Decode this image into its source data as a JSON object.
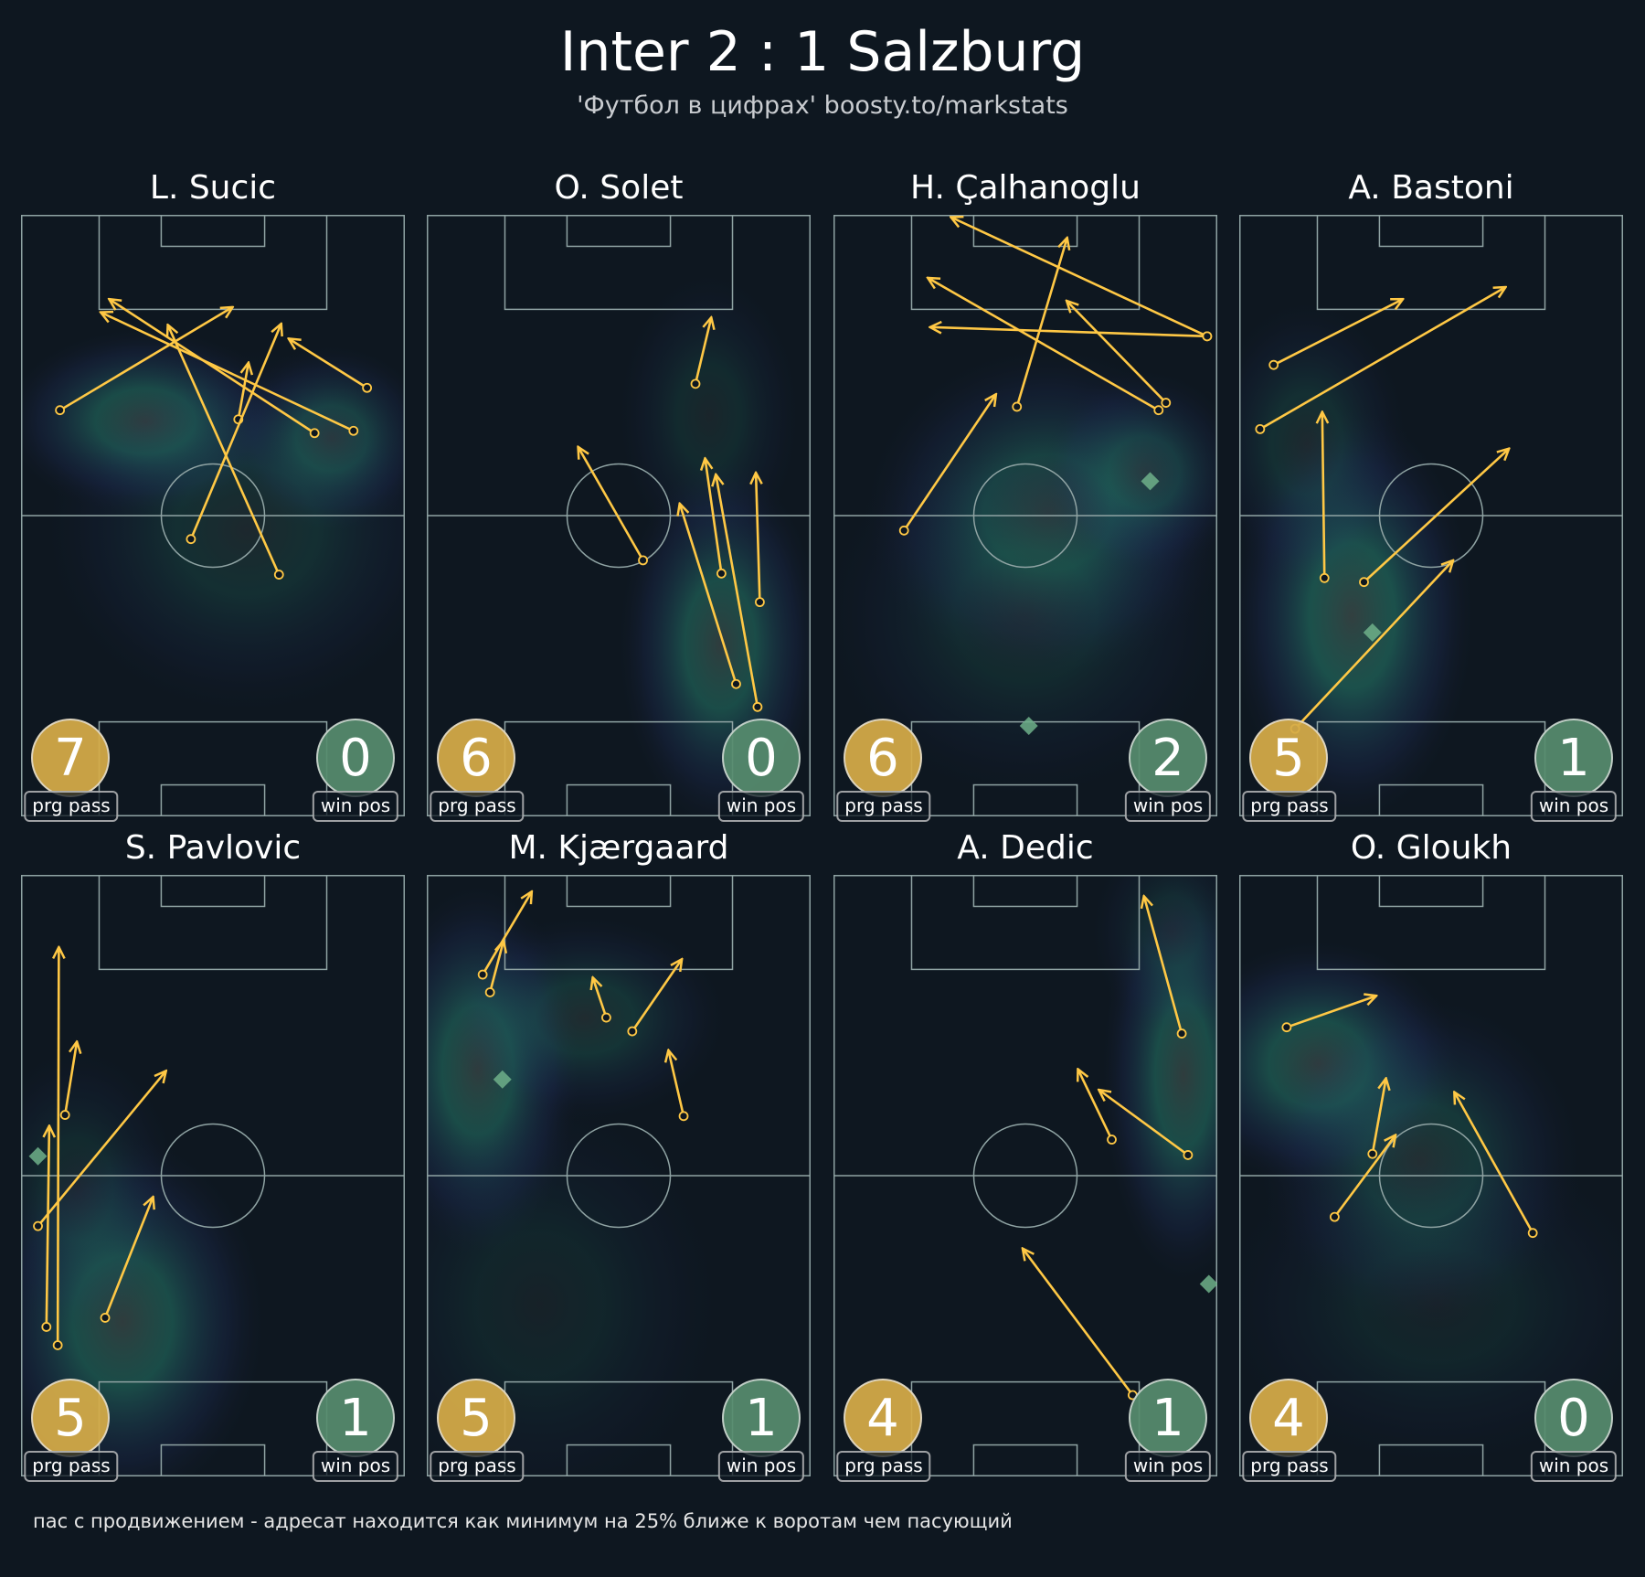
{
  "header": {
    "title": "Inter 2 : 1 Salzburg",
    "subtitle": "'Футбол в цифрах' boosty.to/markstats"
  },
  "footer": {
    "note": "пас с продвижением - адресат находится как минимум на 25% ближе к воротам чем пасующий"
  },
  "labels": {
    "prg": "prg pass",
    "win": "win pos"
  },
  "colors": {
    "background": "#0e1720",
    "pitch_lines": "#8fa3a3",
    "pass_arrow": "#ffc845",
    "prg_badge": "#d6ac48",
    "win_badge": "#568c6e",
    "win_marker": "#6fb08a",
    "heat": "#2a8f7a"
  },
  "chart_data": {
    "type": "pitch-pass-map",
    "pitch_size_m": [
      68,
      105
    ],
    "attack_direction": "up",
    "players": [
      {
        "name": "L. Sucic",
        "prg_pass": "7",
        "win_pos": "0",
        "passes": [
          [
            6.9,
            34.1,
            37.5,
            16.1
          ],
          [
            52.0,
            38.1,
            15.6,
            14.7
          ],
          [
            58.9,
            37.7,
            14.1,
            17.0
          ],
          [
            61.3,
            30.2,
            47.4,
            21.6
          ],
          [
            38.5,
            35.7,
            40.3,
            25.8
          ],
          [
            30.1,
            56.6,
            46.1,
            19.0
          ],
          [
            45.7,
            62.8,
            26.0,
            19.2
          ]
        ],
        "win_positions": [],
        "heat": [
          [
            22,
            36,
            14,
            9,
            0.55
          ],
          [
            55,
            39,
            10,
            9,
            0.45
          ],
          [
            40,
            55,
            20,
            18,
            0.25
          ]
        ]
      },
      {
        "name": "O. Solet",
        "prg_pass": "6",
        "win_pos": "0",
        "passes": [
          [
            47.6,
            29.5,
            50.4,
            17.9
          ],
          [
            38.3,
            60.3,
            26.8,
            40.5
          ],
          [
            52.2,
            62.6,
            49.3,
            42.5
          ],
          [
            59.0,
            67.6,
            58.3,
            45.0
          ],
          [
            54.8,
            81.9,
            44.8,
            50.4
          ],
          [
            58.6,
            85.9,
            51.2,
            45.3
          ]
        ],
        "win_positions": [],
        "heat": [
          [
            52,
            75,
            10,
            18,
            0.55
          ],
          [
            50,
            35,
            9,
            14,
            0.2
          ]
        ]
      },
      {
        "name": "H. Çalhanoglu",
        "prg_pass": "6",
        "win_pos": "2",
        "passes": [
          [
            66.2,
            21.2,
            20.8,
            0.4
          ],
          [
            66.2,
            21.2,
            17.1,
            19.6
          ],
          [
            32.5,
            33.5,
            41.4,
            4.0
          ],
          [
            57.6,
            34.1,
            16.7,
            11.0
          ],
          [
            58.9,
            32.8,
            41.3,
            15.0
          ],
          [
            12.5,
            55.1,
            28.8,
            31.3
          ]
        ],
        "win_positions": [
          [
            56.1,
            46.5
          ],
          [
            34.6,
            89.2
          ]
        ],
        "heat": [
          [
            38,
            52,
            18,
            16,
            0.45
          ],
          [
            55,
            45,
            10,
            10,
            0.35
          ],
          [
            34,
            70,
            20,
            18,
            0.2
          ]
        ]
      },
      {
        "name": "A. Bastoni",
        "prg_pass": "5",
        "win_pos": "1",
        "passes": [
          [
            6.1,
            26.2,
            29.0,
            14.7
          ],
          [
            3.7,
            37.4,
            47.2,
            12.6
          ],
          [
            15.1,
            63.4,
            14.7,
            34.4
          ],
          [
            22.1,
            64.1,
            47.8,
            40.8
          ],
          [
            9.9,
            89.7,
            37.9,
            60.3
          ]
        ],
        "win_positions": [
          [
            23.6,
            72.9
          ]
        ],
        "heat": [
          [
            20,
            70,
            12,
            20,
            0.6
          ],
          [
            12,
            40,
            10,
            14,
            0.25
          ]
        ]
      },
      {
        "name": "S. Pavlovic",
        "prg_pass": "5",
        "win_pos": "1",
        "passes": [
          [
            6.5,
            82.1,
            6.7,
            12.6
          ],
          [
            4.5,
            78.9,
            5.0,
            43.8
          ],
          [
            7.8,
            41.9,
            9.9,
            29.1
          ],
          [
            3.0,
            61.3,
            25.7,
            34.2
          ],
          [
            14.9,
            77.3,
            23.4,
            56.2
          ]
        ],
        "win_positions": [
          [
            3.0,
            49.1
          ]
        ],
        "heat": [
          [
            18,
            78,
            14,
            18,
            0.55
          ],
          [
            10,
            55,
            10,
            14,
            0.2
          ]
        ]
      },
      {
        "name": "M. Kjærgaard",
        "prg_pass": "5",
        "win_pos": "1",
        "passes": [
          [
            9.9,
            17.4,
            18.6,
            2.9
          ],
          [
            11.2,
            20.5,
            13.6,
            11.5
          ],
          [
            31.8,
            24.9,
            29.4,
            17.9
          ],
          [
            36.4,
            27.3,
            45.2,
            14.7
          ],
          [
            45.5,
            42.1,
            42.8,
            30.6
          ]
        ],
        "win_positions": [
          [
            13.4,
            35.7
          ]
        ],
        "heat": [
          [
            9,
            34,
            10,
            18,
            0.55
          ],
          [
            28,
            25,
            14,
            10,
            0.3
          ],
          [
            20,
            75,
            18,
            20,
            0.15
          ]
        ]
      },
      {
        "name": "A. Dedic",
        "prg_pass": "4",
        "win_pos": "1",
        "passes": [
          [
            61.7,
            27.7,
            55.0,
            3.7
          ],
          [
            49.3,
            46.2,
            43.3,
            33.9
          ],
          [
            62.8,
            48.9,
            47.0,
            37.5
          ],
          [
            53.0,
            90.8,
            33.5,
            65.2
          ]
        ],
        "win_positions": [
          [
            66.5,
            71.4
          ]
        ],
        "heat": [
          [
            62,
            35,
            8,
            20,
            0.55
          ],
          [
            60,
            10,
            8,
            10,
            0.2
          ]
        ]
      },
      {
        "name": "O. Gloukh",
        "prg_pass": "4",
        "win_pos": "0",
        "passes": [
          [
            8.4,
            26.6,
            24.3,
            21.1
          ],
          [
            23.6,
            48.7,
            26.0,
            35.5
          ],
          [
            16.9,
            59.7,
            27.7,
            45.4
          ],
          [
            52.0,
            62.5,
            38.1,
            37.9
          ]
        ],
        "win_positions": [],
        "heat": [
          [
            14,
            33,
            14,
            12,
            0.55
          ],
          [
            32,
            50,
            16,
            16,
            0.35
          ],
          [
            35,
            75,
            22,
            16,
            0.15
          ]
        ]
      }
    ]
  }
}
